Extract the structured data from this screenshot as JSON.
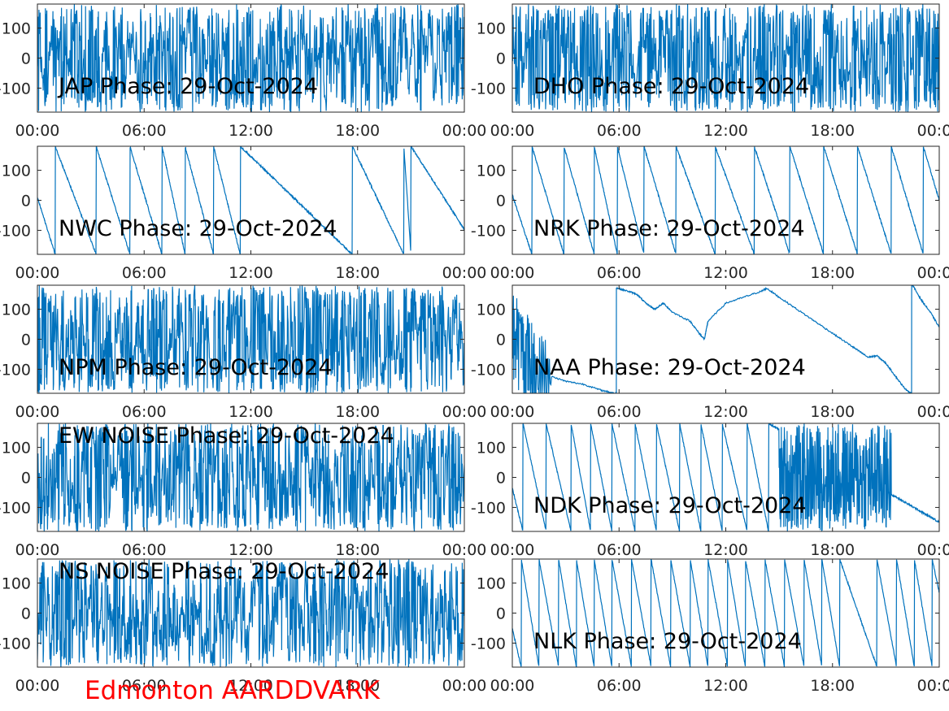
{
  "figure_label": "Edmonton AARDDVARK",
  "colors": {
    "line": "#0072BD",
    "label": "#ff0000",
    "axis": "#262626"
  },
  "chart_data": [
    {
      "type": "line",
      "title": "JAP Phase: 29-Oct-2024",
      "pattern": "noise",
      "xticks": [
        "00:00",
        "06:00",
        "12:00",
        "18:00",
        "00:00"
      ],
      "yticks": [
        "100",
        "0",
        "-100"
      ],
      "ylim": [
        -180,
        180
      ],
      "xlim": [
        0,
        24
      ]
    },
    {
      "type": "line",
      "title": "DHO Phase: 29-Oct-2024",
      "pattern": "noise",
      "xticks": [
        "00:00",
        "06:00",
        "12:00",
        "18:00",
        "00:00"
      ],
      "yticks": [
        "100",
        "0",
        "-100"
      ],
      "ylim": [
        -180,
        180
      ],
      "xlim": [
        0,
        24
      ]
    },
    {
      "type": "line",
      "title": "NWC Phase: 29-Oct-2024",
      "pattern": "sawtooth",
      "xticks": [
        "00:00",
        "06:00",
        "12:00",
        "18:00",
        "00:00"
      ],
      "yticks": [
        "100",
        "0",
        "-100"
      ],
      "ylim": [
        -180,
        180
      ],
      "xlim": [
        0,
        24
      ],
      "wraps": [
        1.0,
        3.3,
        5.2,
        7.0,
        8.3,
        9.9,
        11.4,
        17.7,
        20.6,
        21.0
      ]
    },
    {
      "type": "line",
      "title": "NRK Phase: 29-Oct-2024",
      "pattern": "sawtooth",
      "xticks": [
        "00:00",
        "06:00",
        "12:00",
        "18:00",
        "00:00"
      ],
      "yticks": [
        "100",
        "0",
        "-100"
      ],
      "ylim": [
        -180,
        180
      ],
      "xlim": [
        0,
        24
      ],
      "wraps": [
        1.1,
        2.9,
        4.6,
        5.9,
        7.4,
        9.2,
        11.4,
        13.6,
        15.6,
        17.5,
        19.4,
        21.3,
        23.1
      ]
    },
    {
      "type": "line",
      "title": "NPM Phase: 29-Oct-2024",
      "pattern": "noise",
      "xticks": [
        "00:00",
        "06:00",
        "12:00",
        "18:00",
        "00:00"
      ],
      "yticks": [
        "100",
        "0",
        "-100"
      ],
      "ylim": [
        -180,
        180
      ],
      "xlim": [
        0,
        24
      ]
    },
    {
      "type": "line",
      "title": "NAA Phase: 29-Oct-2024",
      "pattern": "naa",
      "xticks": [
        "00:00",
        "06:00",
        "12:00",
        "18:00",
        "00:00"
      ],
      "yticks": [
        "100",
        "0",
        "-100"
      ],
      "ylim": [
        -180,
        180
      ],
      "xlim": [
        0,
        24
      ],
      "points": [
        [
          0,
          10
        ],
        [
          0.5,
          -30
        ],
        [
          1,
          -80
        ],
        [
          1.3,
          -140
        ],
        [
          2,
          -120
        ],
        [
          3,
          -140
        ],
        [
          4,
          -150
        ],
        [
          5,
          -170
        ],
        [
          5.8,
          -180
        ],
        [
          5.9,
          170
        ],
        [
          6.5,
          160
        ],
        [
          7,
          150
        ],
        [
          7.5,
          120
        ],
        [
          8,
          100
        ],
        [
          8.5,
          120
        ],
        [
          9,
          90
        ],
        [
          10,
          60
        ],
        [
          10.5,
          20
        ],
        [
          10.8,
          0
        ],
        [
          11,
          60
        ],
        [
          12,
          120
        ],
        [
          13,
          140
        ],
        [
          14,
          160
        ],
        [
          14.3,
          170
        ],
        [
          15,
          140
        ],
        [
          16,
          100
        ],
        [
          17,
          60
        ],
        [
          18,
          20
        ],
        [
          19,
          -20
        ],
        [
          19.5,
          -40
        ],
        [
          20,
          -60
        ],
        [
          20.5,
          -55
        ],
        [
          21,
          -80
        ],
        [
          21.5,
          -120
        ],
        [
          22,
          -160
        ],
        [
          22.4,
          -180
        ],
        [
          22.5,
          180
        ],
        [
          23,
          130
        ],
        [
          23.5,
          90
        ],
        [
          24,
          40
        ]
      ]
    },
    {
      "type": "line",
      "title": "EW NOISE Phase: 29-Oct-2024",
      "pattern": "noise",
      "xticks": [
        "00:00",
        "06:00",
        "12:00",
        "18:00",
        "00:00"
      ],
      "yticks": [
        "100",
        "0",
        "-100"
      ],
      "ylim": [
        -180,
        180
      ],
      "xlim": [
        0,
        24
      ]
    },
    {
      "type": "line",
      "title": "NDK Phase: 29-Oct-2024",
      "pattern": "sawtooth_noise",
      "xticks": [
        "00:00",
        "06:00",
        "12:00",
        "18:00",
        "00:00"
      ],
      "yticks": [
        "100",
        "0",
        "-100"
      ],
      "ylim": [
        -180,
        180
      ],
      "xlim": [
        0,
        24
      ],
      "wraps": [
        0.6,
        1.9,
        3.3,
        4.4,
        5.6,
        6.9,
        8.1,
        9.4,
        10.6,
        11.8,
        13.2,
        14.4
      ],
      "noise_range": [
        15.0,
        21.3
      ]
    },
    {
      "type": "line",
      "title": "NS NOISE Phase: 29-Oct-2024",
      "pattern": "noise",
      "xticks": [
        "00:00",
        "06:00",
        "12:00",
        "18:00",
        "00:00"
      ],
      "yticks": [
        "100",
        "0",
        "-100"
      ],
      "ylim": [
        -180,
        180
      ],
      "xlim": [
        0,
        24
      ]
    },
    {
      "type": "line",
      "title": "NLK Phase: 29-Oct-2024",
      "pattern": "sawtooth",
      "xticks": [
        "00:00",
        "06:00",
        "12:00",
        "18:00",
        "00:00"
      ],
      "yticks": [
        "100",
        "0",
        "-100"
      ],
      "ylim": [
        -180,
        180
      ],
      "xlim": [
        0,
        24
      ],
      "wraps": [
        0.5,
        1.5,
        2.6,
        3.6,
        4.6,
        5.6,
        6.7,
        7.8,
        8.9,
        10.0,
        11.0,
        12.1,
        13.1,
        14.2,
        15.3,
        16.4,
        17.4,
        18.4,
        20.5,
        21.6,
        22.6,
        23.6
      ]
    }
  ]
}
